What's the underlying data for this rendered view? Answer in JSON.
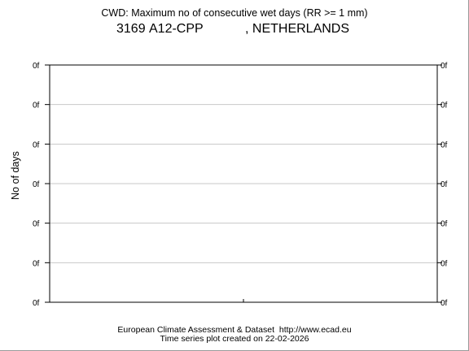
{
  "header": {
    "title": "CWD: Maximum no of consecutive wet days (RR >= 1 mm)",
    "station_id": "3169",
    "station_name": "A12-CPP",
    "country": ", NETHERLANDS"
  },
  "footer": {
    "line1": "European Climate Assessment & Dataset  http://www.ecad.eu",
    "line2": "Time series plot created on 22-02-2026"
  },
  "chart_data": {
    "type": "line",
    "title": "CWD: Maximum no of consecutive wet days (RR >= 1 mm)",
    "subtitle": "3169 A12-CPP , NETHERLANDS",
    "xlabel": "",
    "ylabel": "No of days",
    "y_tick_labels": [
      "0f",
      "0f",
      "0f",
      "0f",
      "0f",
      "0f",
      "0f"
    ],
    "x_tick_labels": [],
    "series": [],
    "grid": true,
    "legend": "none"
  }
}
